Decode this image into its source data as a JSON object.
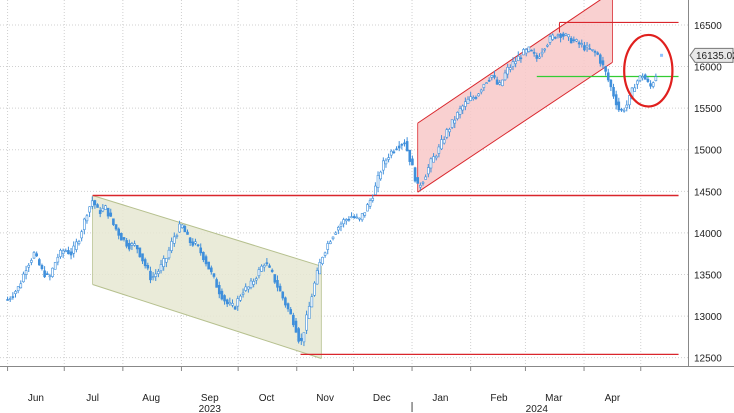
{
  "chart_data": {
    "type": "candlestick",
    "title": "",
    "xlabel": "",
    "ylabel": "",
    "ylim": [
      12400,
      16800
    ],
    "yticks": [
      12500,
      13000,
      13500,
      14000,
      14500,
      15000,
      15500,
      16000,
      16500
    ],
    "grid": true,
    "months": [
      {
        "label": "Jun",
        "year": 2023,
        "day": 15
      },
      {
        "label": "Jul",
        "year": 2023,
        "day": 45
      },
      {
        "label": "Aug",
        "year": 2023,
        "day": 76
      },
      {
        "label": "Sep",
        "year": 2023,
        "day": 107
      },
      {
        "label": "Oct",
        "year": 2023,
        "day": 137
      },
      {
        "label": "Nov",
        "year": 2023,
        "day": 168
      },
      {
        "label": "Dec",
        "year": 2023,
        "day": 198
      },
      {
        "label": "Jan",
        "year": 2024,
        "day": 229
      },
      {
        "label": "Feb",
        "year": 2024,
        "day": 260
      },
      {
        "label": "Mar",
        "year": 2024,
        "day": 289
      },
      {
        "label": "Apr",
        "year": 2024,
        "day": 320
      }
    ],
    "year_labels": [
      {
        "text": "2023",
        "day": 107
      },
      {
        "text": "2024",
        "day": 280
      }
    ],
    "price_points": [
      {
        "day": 0,
        "value": 13200
      },
      {
        "day": 6,
        "value": 13350
      },
      {
        "day": 10,
        "value": 13600
      },
      {
        "day": 14,
        "value": 13750
      },
      {
        "day": 18,
        "value": 13550
      },
      {
        "day": 22,
        "value": 13450
      },
      {
        "day": 26,
        "value": 13700
      },
      {
        "day": 30,
        "value": 13800
      },
      {
        "day": 34,
        "value": 13750
      },
      {
        "day": 38,
        "value": 13950
      },
      {
        "day": 42,
        "value": 14250
      },
      {
        "day": 45,
        "value": 14400
      },
      {
        "day": 48,
        "value": 14250
      },
      {
        "day": 52,
        "value": 14300
      },
      {
        "day": 56,
        "value": 14100
      },
      {
        "day": 60,
        "value": 13950
      },
      {
        "day": 64,
        "value": 13850
      },
      {
        "day": 68,
        "value": 13850
      },
      {
        "day": 72,
        "value": 13650
      },
      {
        "day": 76,
        "value": 13450
      },
      {
        "day": 80,
        "value": 13550
      },
      {
        "day": 84,
        "value": 13700
      },
      {
        "day": 88,
        "value": 13950
      },
      {
        "day": 92,
        "value": 14100
      },
      {
        "day": 96,
        "value": 13900
      },
      {
        "day": 100,
        "value": 13850
      },
      {
        "day": 104,
        "value": 13700
      },
      {
        "day": 108,
        "value": 13500
      },
      {
        "day": 112,
        "value": 13300
      },
      {
        "day": 116,
        "value": 13150
      },
      {
        "day": 120,
        "value": 13100
      },
      {
        "day": 124,
        "value": 13300
      },
      {
        "day": 128,
        "value": 13350
      },
      {
        "day": 132,
        "value": 13500
      },
      {
        "day": 136,
        "value": 13650
      },
      {
        "day": 140,
        "value": 13500
      },
      {
        "day": 144,
        "value": 13300
      },
      {
        "day": 148,
        "value": 13100
      },
      {
        "day": 152,
        "value": 12900
      },
      {
        "day": 155,
        "value": 12650
      },
      {
        "day": 158,
        "value": 12950
      },
      {
        "day": 162,
        "value": 13350
      },
      {
        "day": 166,
        "value": 13700
      },
      {
        "day": 170,
        "value": 13900
      },
      {
        "day": 174,
        "value": 14050
      },
      {
        "day": 178,
        "value": 14150
      },
      {
        "day": 182,
        "value": 14200
      },
      {
        "day": 186,
        "value": 14150
      },
      {
        "day": 190,
        "value": 14300
      },
      {
        "day": 194,
        "value": 14500
      },
      {
        "day": 198,
        "value": 14800
      },
      {
        "day": 202,
        "value": 14950
      },
      {
        "day": 206,
        "value": 15050
      },
      {
        "day": 210,
        "value": 15100
      },
      {
        "day": 214,
        "value": 14800
      },
      {
        "day": 217,
        "value": 14550
      },
      {
        "day": 220,
        "value": 14650
      },
      {
        "day": 224,
        "value": 14850
      },
      {
        "day": 228,
        "value": 15000
      },
      {
        "day": 232,
        "value": 15200
      },
      {
        "day": 236,
        "value": 15350
      },
      {
        "day": 240,
        "value": 15500
      },
      {
        "day": 244,
        "value": 15600
      },
      {
        "day": 248,
        "value": 15650
      },
      {
        "day": 252,
        "value": 15800
      },
      {
        "day": 256,
        "value": 15900
      },
      {
        "day": 260,
        "value": 15750
      },
      {
        "day": 264,
        "value": 15950
      },
      {
        "day": 268,
        "value": 16050
      },
      {
        "day": 272,
        "value": 16150
      },
      {
        "day": 276,
        "value": 16200
      },
      {
        "day": 280,
        "value": 16100
      },
      {
        "day": 284,
        "value": 16250
      },
      {
        "day": 288,
        "value": 16350
      },
      {
        "day": 292,
        "value": 16400
      },
      {
        "day": 296,
        "value": 16350
      },
      {
        "day": 300,
        "value": 16300
      },
      {
        "day": 304,
        "value": 16250
      },
      {
        "day": 308,
        "value": 16200
      },
      {
        "day": 312,
        "value": 16150
      },
      {
        "day": 316,
        "value": 15950
      },
      {
        "day": 320,
        "value": 15700
      },
      {
        "day": 324,
        "value": 15450
      },
      {
        "day": 328,
        "value": 15550
      },
      {
        "day": 332,
        "value": 15800
      },
      {
        "day": 336,
        "value": 15900
      },
      {
        "day": 340,
        "value": 15750
      },
      {
        "day": 344,
        "value": 15950
      }
    ],
    "last_price": {
      "day": 346,
      "value": 16135.02,
      "label": "16135.02"
    },
    "annotations": {
      "support_line_upper": {
        "value": 14450,
        "from_day": 45,
        "to_day": 355,
        "color": "#d9262c"
      },
      "support_line_lower": {
        "value": 12540,
        "from_day": 155,
        "to_day": 355,
        "color": "#d9262c"
      },
      "resistance_line_top": {
        "value": 16530,
        "from_day": 292,
        "to_day": 355,
        "color": "#d9262c"
      },
      "green_line": {
        "value": 15880,
        "from_day": 280,
        "to_day": 355,
        "color": "#33cc33"
      },
      "down_channel": {
        "upper_start": {
          "day": 45,
          "value": 14450
        },
        "upper_end": {
          "day": 166,
          "value": 13600
        },
        "lower_start": {
          "day": 45,
          "value": 13380
        },
        "lower_end": {
          "day": 166,
          "value": 12490
        },
        "fill": "#e6e8d2",
        "stroke": "#b6c08e"
      },
      "up_channel": {
        "upper_start": {
          "day": 217,
          "value": 15320
        },
        "upper_end": {
          "day": 320,
          "value": 16900
        },
        "lower_start": {
          "day": 217,
          "value": 14490
        },
        "lower_end": {
          "day": 320,
          "value": 16050
        },
        "fill": "#f8c8c8",
        "stroke": "#d9262c"
      },
      "highlight_ellipse": {
        "center_day": 339,
        "center_value": 15950,
        "radius_days": 8,
        "radius_value": 430,
        "color": "#e0201e"
      }
    },
    "colors": {
      "price_bar": "#3f8fdb",
      "axis_text": "#222222",
      "grid": "#d0d0d0"
    }
  }
}
